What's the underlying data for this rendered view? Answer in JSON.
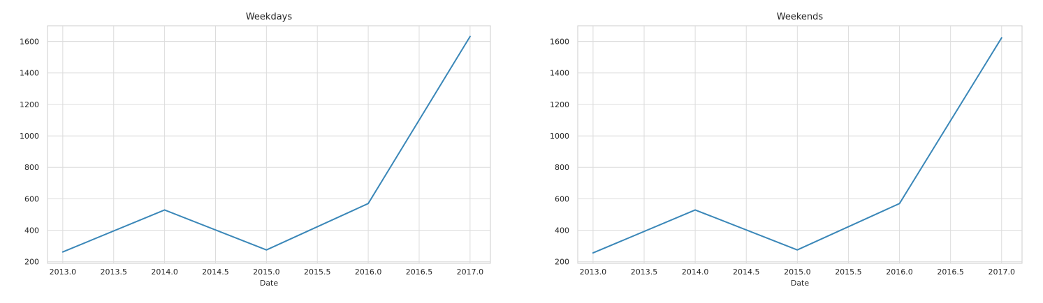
{
  "colors": {
    "series": "#3a87b8"
  },
  "chart_data": [
    {
      "type": "line",
      "title": "Weekdays",
      "xlabel": "Date",
      "ylabel": "",
      "x": [
        2013,
        2014,
        2015,
        2016,
        2017
      ],
      "series": [
        {
          "values": [
            262,
            529,
            275,
            570,
            1632
          ]
        }
      ],
      "xlim": [
        2012.85,
        2017.2
      ],
      "ylim": [
        190,
        1700
      ],
      "xticks": [
        2013.0,
        2013.5,
        2014.0,
        2014.5,
        2015.0,
        2015.5,
        2016.0,
        2016.5,
        2017.0
      ],
      "xtick_labels": [
        "2013.0",
        "2013.5",
        "2014.0",
        "2014.5",
        "2015.0",
        "2015.5",
        "2016.0",
        "2016.5",
        "2017.0"
      ],
      "yticks": [
        200,
        400,
        600,
        800,
        1000,
        1200,
        1400,
        1600
      ],
      "ytick_labels": [
        "200",
        "400",
        "600",
        "800",
        "1000",
        "1200",
        "1400",
        "1600"
      ],
      "grid": true,
      "legend": "none"
    },
    {
      "type": "line",
      "title": "Weekends",
      "xlabel": "Date",
      "ylabel": "",
      "x": [
        2013,
        2014,
        2015,
        2016,
        2017
      ],
      "series": [
        {
          "values": [
            256,
            529,
            275,
            570,
            1624
          ]
        }
      ],
      "xlim": [
        2012.85,
        2017.2
      ],
      "ylim": [
        190,
        1700
      ],
      "xticks": [
        2013.0,
        2013.5,
        2014.0,
        2014.5,
        2015.0,
        2015.5,
        2016.0,
        2016.5,
        2017.0
      ],
      "xtick_labels": [
        "2013.0",
        "2013.5",
        "2014.0",
        "2014.5",
        "2015.0",
        "2015.5",
        "2016.0",
        "2016.5",
        "2017.0"
      ],
      "yticks": [
        200,
        400,
        600,
        800,
        1000,
        1200,
        1400,
        1600
      ],
      "ytick_labels": [
        "200",
        "400",
        "600",
        "800",
        "1000",
        "1200",
        "1400",
        "1600"
      ],
      "grid": true,
      "legend": "none"
    }
  ]
}
